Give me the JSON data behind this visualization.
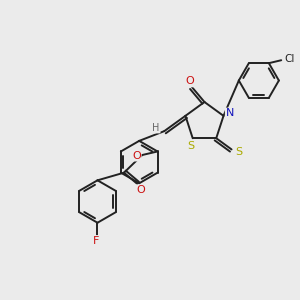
{
  "background_color": "#ebebeb",
  "bond_color": "#222222",
  "figsize": [
    3.0,
    3.0
  ],
  "dpi": 100,
  "atoms": {
    "N": {
      "color": "#1111bb",
      "symbol": "N"
    },
    "O_carbonyl1": {
      "color": "#cc1111",
      "symbol": "O"
    },
    "O_carbonyl2": {
      "color": "#cc1111",
      "symbol": "O"
    },
    "O_ester": {
      "color": "#cc1111",
      "symbol": "O"
    },
    "S1": {
      "color": "#aaaa00",
      "symbol": "S"
    },
    "S2": {
      "color": "#aaaa00",
      "symbol": "S"
    },
    "Cl": {
      "color": "#222222",
      "symbol": "Cl"
    },
    "F": {
      "color": "#cc1111",
      "symbol": "F"
    },
    "H": {
      "color": "#666666",
      "symbol": "H"
    }
  }
}
